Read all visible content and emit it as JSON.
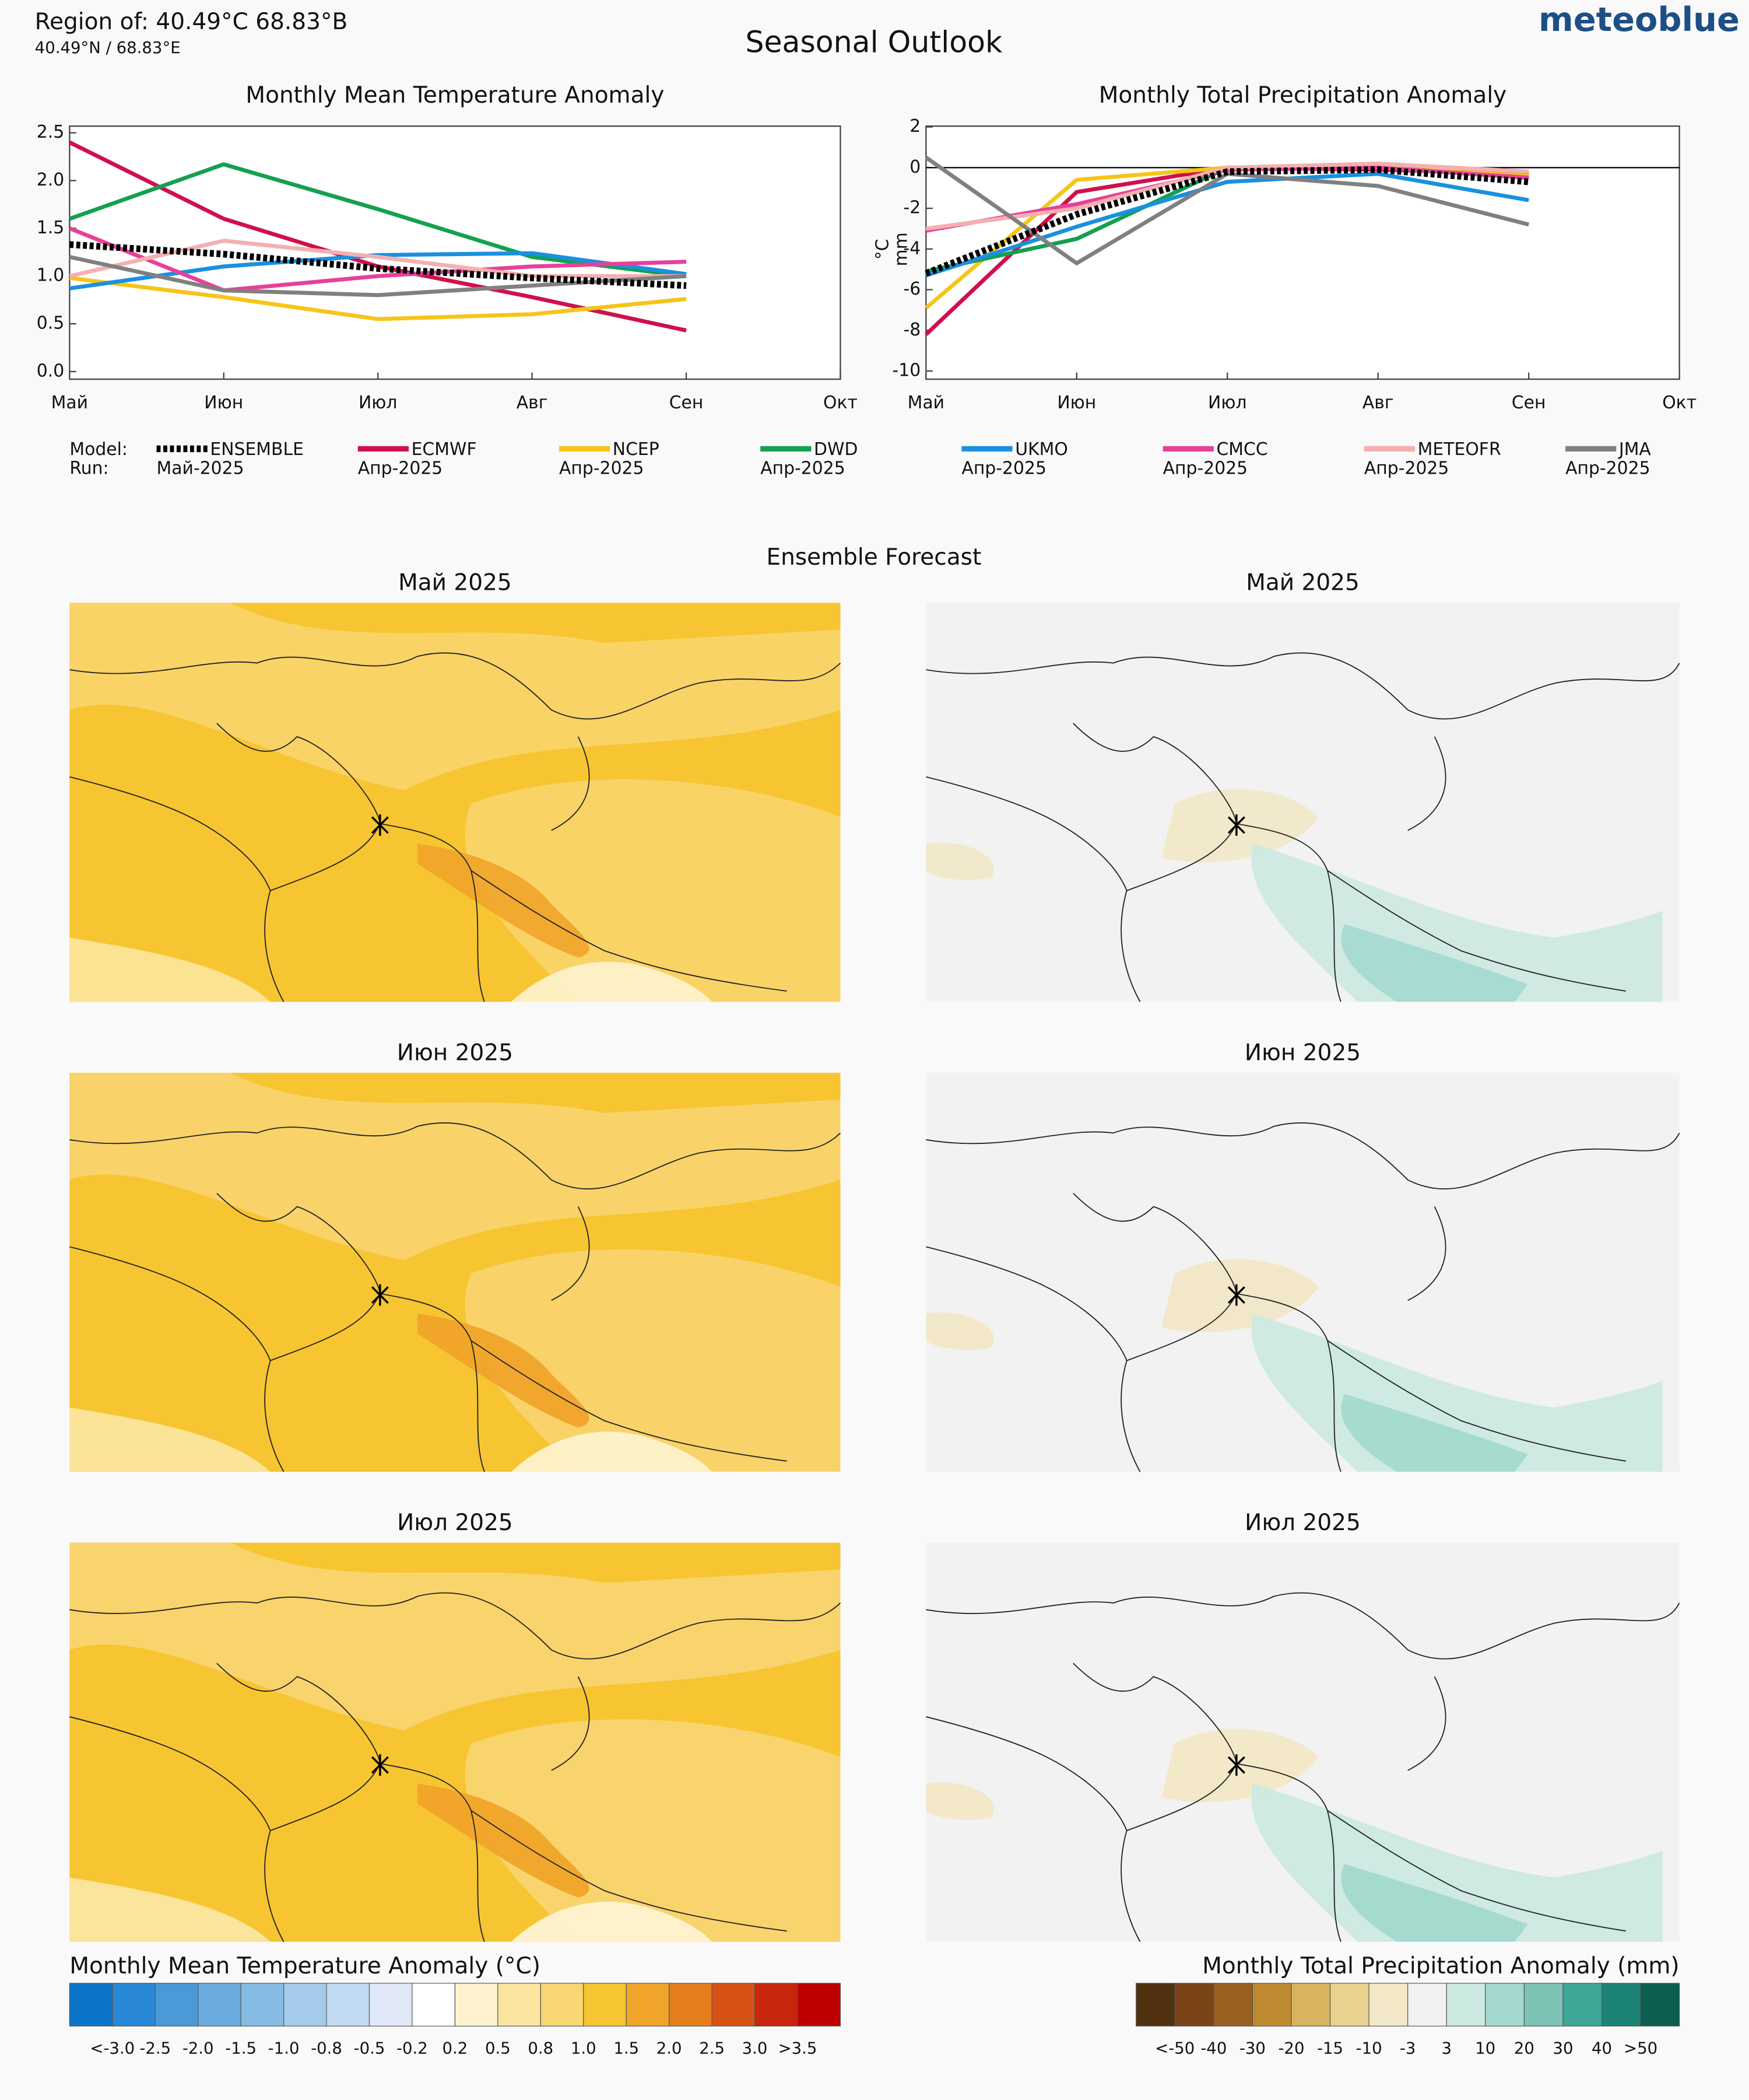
{
  "header": {
    "region": "Region of: 40.49°C 68.83°B",
    "coords": "40.49°N / 68.83°E",
    "title": "Seasonal Outlook",
    "brand": "meteoblue"
  },
  "legend": {
    "model_label": "Model:",
    "run_label": "Run:"
  },
  "chart_data": [
    {
      "type": "line",
      "title": "Monthly Mean Temperature Anomaly",
      "categories": [
        "Май",
        "Июн",
        "Июл",
        "Авг",
        "Сен",
        "Окт"
      ],
      "ylim": [
        -0.08,
        2.57
      ],
      "yticks": [
        {
          "value": 0,
          "label": "0.0"
        },
        0.5,
        {
          "value": 1,
          "label": "1.0"
        },
        1.5,
        {
          "value": 2,
          "label": "2.0"
        },
        2.5
      ],
      "series": [
        {
          "name": "ENSEMBLE",
          "run": "Май-2025",
          "color": "#000000",
          "style": "dotted",
          "values": [
            1.33,
            1.23,
            1.08,
            0.98,
            0.9,
            null
          ]
        },
        {
          "name": "ECMWF",
          "run": "Апр-2025",
          "color": "#d0104c",
          "values": [
            2.4,
            1.6,
            1.1,
            0.78,
            0.43,
            null
          ]
        },
        {
          "name": "NCEP",
          "run": "Апр-2025",
          "color": "#f5c518",
          "values": [
            0.98,
            0.78,
            0.55,
            0.6,
            0.76,
            null
          ]
        },
        {
          "name": "DWD",
          "run": "Апр-2025",
          "color": "#14a050",
          "values": [
            1.6,
            2.17,
            1.7,
            1.2,
            1.0,
            null
          ]
        },
        {
          "name": "UKMO",
          "run": "Апр-2025",
          "color": "#1a90e0",
          "values": [
            0.87,
            1.1,
            1.22,
            1.24,
            1.02,
            null
          ]
        },
        {
          "name": "CMCC",
          "run": "Апр-2025",
          "color": "#e8409a",
          "values": [
            1.5,
            0.85,
            1.0,
            1.1,
            1.15,
            null
          ]
        },
        {
          "name": "METEOFR",
          "run": "Апр-2025",
          "color": "#f4b0b0",
          "values": [
            1.0,
            1.37,
            1.2,
            1.0,
            1.0,
            null
          ]
        },
        {
          "name": "JMA",
          "run": "Апр-2025",
          "color": "#808080",
          "values": [
            1.2,
            0.85,
            0.8,
            0.9,
            1.0,
            null
          ]
        }
      ]
    },
    {
      "type": "line",
      "title": "Monthly Total Precipitation Anomaly",
      "ylabel": [
        "°C",
        "mm"
      ],
      "zero_line": true,
      "categories": [
        "Май",
        "Июн",
        "Июл",
        "Авг",
        "Сен",
        "Окт"
      ],
      "ylim": [
        -10.4,
        2.04
      ],
      "yticks": [
        -10,
        -8,
        -6,
        -4,
        -2,
        0,
        2
      ],
      "series": [
        {
          "name": "ENSEMBLE",
          "color": "#000000",
          "style": "dotted",
          "values": [
            -5.2,
            -2.3,
            -0.2,
            -0.1,
            -0.7,
            null
          ]
        },
        {
          "name": "ECMWF",
          "color": "#d0104c",
          "values": [
            -8.2,
            -1.2,
            0,
            -0.1,
            -0.3,
            null
          ]
        },
        {
          "name": "NCEP",
          "color": "#f5c518",
          "values": [
            -6.9,
            -0.6,
            0,
            0,
            -0.4,
            null
          ]
        },
        {
          "name": "DWD",
          "color": "#14a050",
          "values": [
            -5.1,
            -3.5,
            0,
            0,
            -0.5,
            null
          ]
        },
        {
          "name": "UKMO",
          "color": "#1a90e0",
          "values": [
            -5.3,
            -2.9,
            -0.7,
            -0.3,
            -1.6,
            null
          ]
        },
        {
          "name": "CMCC",
          "color": "#e8409a",
          "values": [
            -3.1,
            -1.8,
            -0.1,
            0,
            -0.5,
            null
          ]
        },
        {
          "name": "METEOFR",
          "color": "#f4b0b0",
          "values": [
            -3.0,
            -2.0,
            0,
            0.2,
            -0.2,
            null
          ]
        },
        {
          "name": "JMA",
          "color": "#808080",
          "values": [
            0.5,
            -4.7,
            -0.3,
            -0.9,
            -2.8,
            null
          ]
        }
      ]
    }
  ],
  "maps": {
    "title": "Ensemble Forecast",
    "panels": [
      "Май 2025",
      "Май 2025",
      "Июн 2025",
      "Июн 2025",
      "Июл 2025",
      "Июл 2025"
    ],
    "colorbars": [
      {
        "title": "Monthly Mean Temperature Anomaly (°C)",
        "colors": [
          "#0a74c9",
          "#2a88d8",
          "#4a9ad8",
          "#6aacde",
          "#86bce3",
          "#a4cbec",
          "#c2dbf2",
          "#e0e8f8",
          "#ffffff",
          "#fdf3cf",
          "#fbe59f",
          "#f8d672",
          "#f7c531",
          "#f0a42a",
          "#e57f1e",
          "#d95215",
          "#c9260e",
          "#c00000"
        ],
        "labels": [
          "<-3.0",
          "-2.5",
          "-2.0",
          "-1.5",
          "-1.0",
          "-0.8",
          "-0.5",
          "-0.2",
          "0.2",
          "0.5",
          "0.8",
          "1.0",
          "1.5",
          "2.0",
          "2.5",
          "3.0",
          ">3.5"
        ]
      },
      {
        "title": "Monthly Total Precipitation Anomaly (mm)",
        "colors": [
          "#523110",
          "#7a4418",
          "#9a6020",
          "#bf8b30",
          "#d9b460",
          "#e8d38e",
          "#f2e7c6",
          "#f2f2f2",
          "#cce9e1",
          "#a3d9ce",
          "#7cc3b6",
          "#3fa696",
          "#1b8475",
          "#0b5e50"
        ],
        "labels": [
          "<-50",
          "-40",
          "-30",
          "-20",
          "-15",
          "-10",
          "-3",
          "3",
          "10",
          "20",
          "30",
          "40",
          ">50"
        ]
      }
    ]
  }
}
